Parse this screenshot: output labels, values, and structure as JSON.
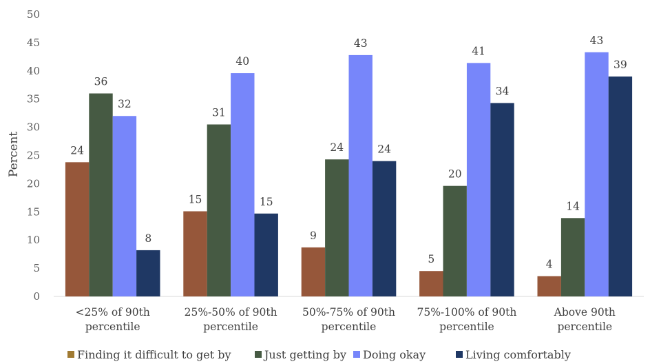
{
  "chart_data": {
    "type": "bar",
    "title": "",
    "xlabel": "",
    "ylabel": "Percent",
    "ylim": [
      0,
      50
    ],
    "yticks": [
      0,
      5,
      10,
      15,
      20,
      25,
      30,
      35,
      40,
      45,
      50
    ],
    "grid": false,
    "legend_position": "bottom",
    "categories": [
      [
        "<25% of 90th",
        "percentile"
      ],
      [
        "25%-50% of 90th",
        "percentile"
      ],
      [
        "50%-75% of 90th",
        "percentile"
      ],
      [
        "75%-100% of 90th",
        "percentile"
      ],
      [
        "Above 90th",
        "percentile"
      ]
    ],
    "series": [
      {
        "name": "Finding it difficult to get by",
        "color": "#96573A",
        "legend_color": "#A07A32",
        "values": [
          23.8,
          15.1,
          8.7,
          4.5,
          3.6
        ],
        "labels": [
          "24",
          "15",
          "9",
          "5",
          "4"
        ]
      },
      {
        "name": "Just getting by",
        "color": "#465A43",
        "values": [
          36.0,
          30.5,
          24.3,
          19.6,
          13.9
        ],
        "labels": [
          "36",
          "31",
          "24",
          "20",
          "14"
        ]
      },
      {
        "name": "Doing okay",
        "color": "#7786FA",
        "values": [
          32.0,
          39.6,
          42.8,
          41.4,
          43.3
        ],
        "labels": [
          "32",
          "40",
          "43",
          "41",
          "43"
        ]
      },
      {
        "name": "Living comfortably",
        "color": "#1F3864",
        "values": [
          8.2,
          14.7,
          24.0,
          34.3,
          39.0
        ],
        "labels": [
          "8",
          "15",
          "24",
          "34",
          "39"
        ]
      }
    ]
  }
}
